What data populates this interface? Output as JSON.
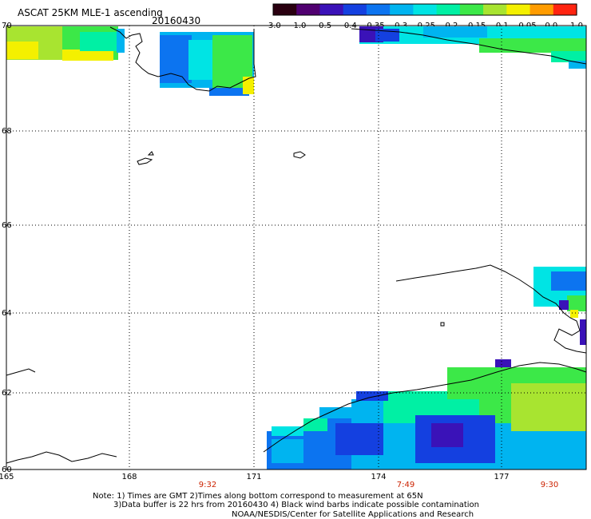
{
  "title": "ASCAT 25KM MLE-1 ascending",
  "date": "20160430",
  "colorbar": {
    "ticks": [
      "-3.0",
      "-1.0",
      "-0.5",
      "-0.4",
      "-0.35",
      "-0.3",
      "-0.25",
      "-0.2",
      "-0.15",
      "-0.1",
      "-0.05",
      "0.0",
      "1.0"
    ],
    "colors": [
      "#2a0010",
      "#500070",
      "#3a12b8",
      "#1440e0",
      "#0c74f0",
      "#00b4f0",
      "#00e4e4",
      "#00f0a4",
      "#3ce848",
      "#a8e430",
      "#f4f000",
      "#ff9c00",
      "#ff2410"
    ]
  },
  "map": {
    "lat_labels": [
      "70",
      "68",
      "66",
      "64",
      "62",
      "60"
    ],
    "lon_labels": [
      "165",
      "168",
      "171",
      "174",
      "177"
    ],
    "pass_times": [
      "9:32",
      "7:49",
      "9:30"
    ],
    "time_color": "#cc2200"
  },
  "notes": {
    "line1": "Note: 1) Times are GMT 2)Times along bottom correspond to measurement at 65N",
    "line2": "3)Data buffer is 22 hrs from 20160430 4) Black wind barbs indicate possible contamination",
    "line3": "NOAA/NESDIS/Center for Satellite Applications and Research"
  }
}
